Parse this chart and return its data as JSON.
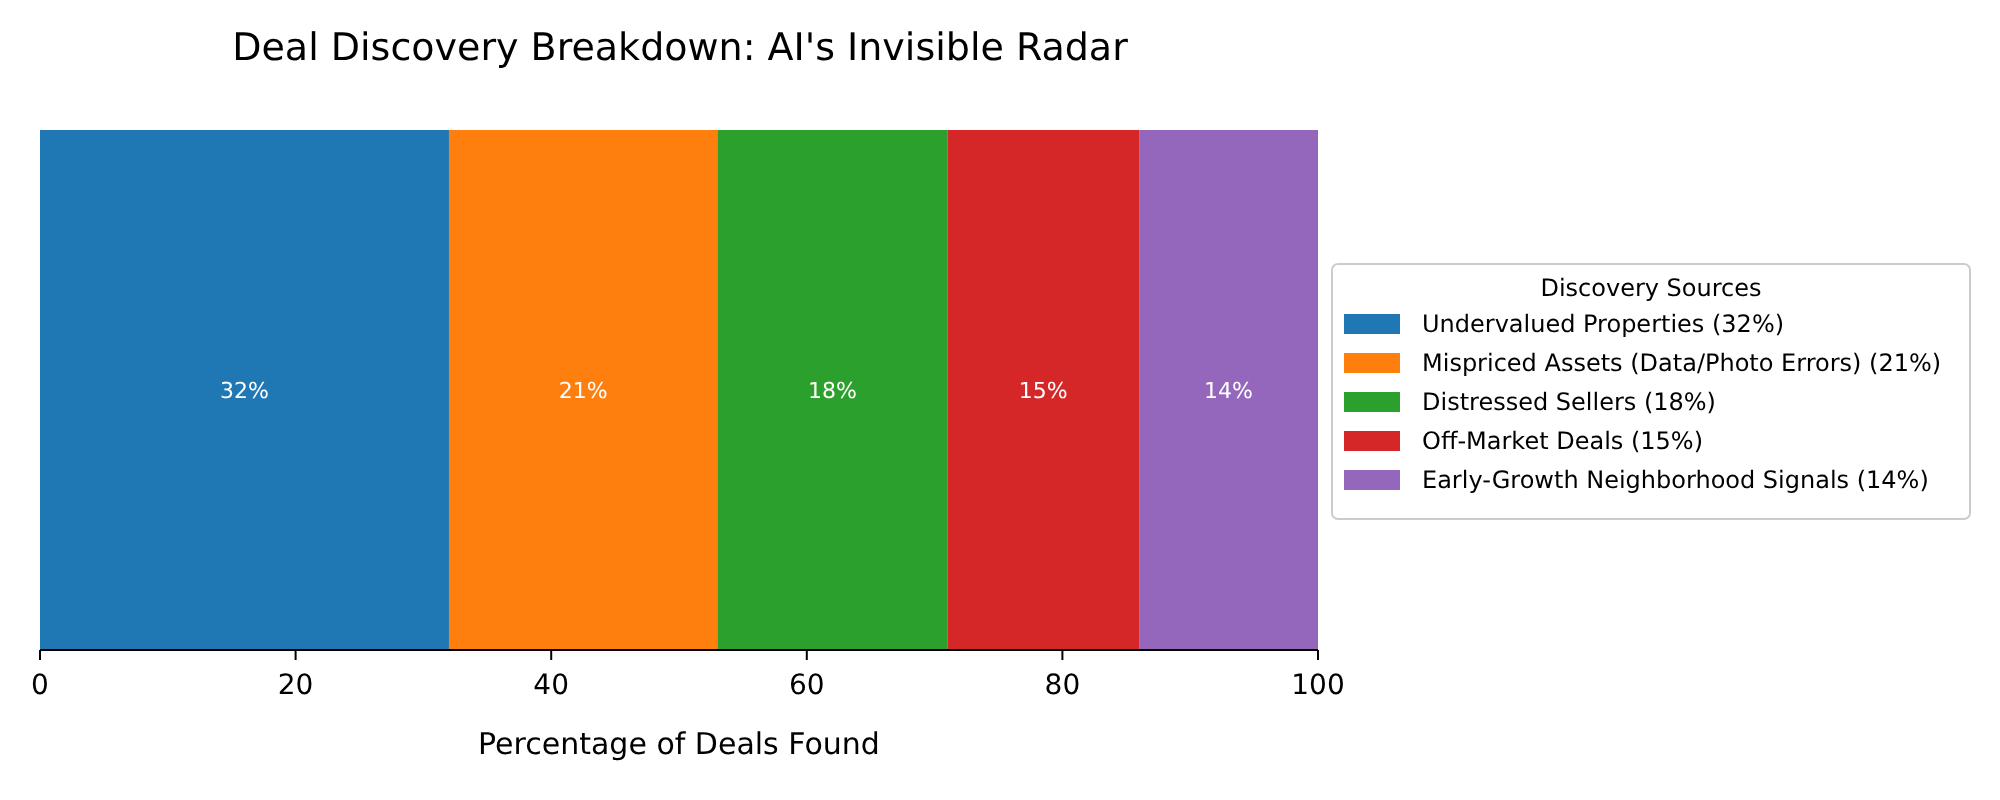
{
  "chart_data": {
    "type": "bar",
    "orientation": "horizontal",
    "stacked": true,
    "title": "Deal Discovery Breakdown: AI's Invisible Radar",
    "xlabel": "Percentage of Deals Found",
    "legend_title": "Discovery Sources",
    "legend": "right",
    "categories": [
      null
    ],
    "xlim": [
      0,
      100
    ],
    "xticks": [
      0,
      20,
      40,
      60,
      80,
      100
    ],
    "grid": false,
    "series": [
      {
        "name": "Undervalued Properties (32%)",
        "color": "#1f77b4",
        "values": [
          32
        ],
        "value_labels": [
          "32%"
        ]
      },
      {
        "name": "Mispriced Assets (Data/Photo Errors) (21%)",
        "color": "#ff7f0e",
        "values": [
          21
        ],
        "value_labels": [
          "21%"
        ]
      },
      {
        "name": "Distressed Sellers (18%)",
        "color": "#2ca02c",
        "values": [
          18
        ],
        "value_labels": [
          "18%"
        ]
      },
      {
        "name": "Off-Market Deals (15%)",
        "color": "#d62728",
        "values": [
          15
        ],
        "value_labels": [
          "15%"
        ]
      },
      {
        "name": "Early-Growth Neighborhood Signals (14%)",
        "color": "#9467bd",
        "values": [
          14
        ],
        "value_labels": [
          "14%"
        ]
      }
    ]
  }
}
